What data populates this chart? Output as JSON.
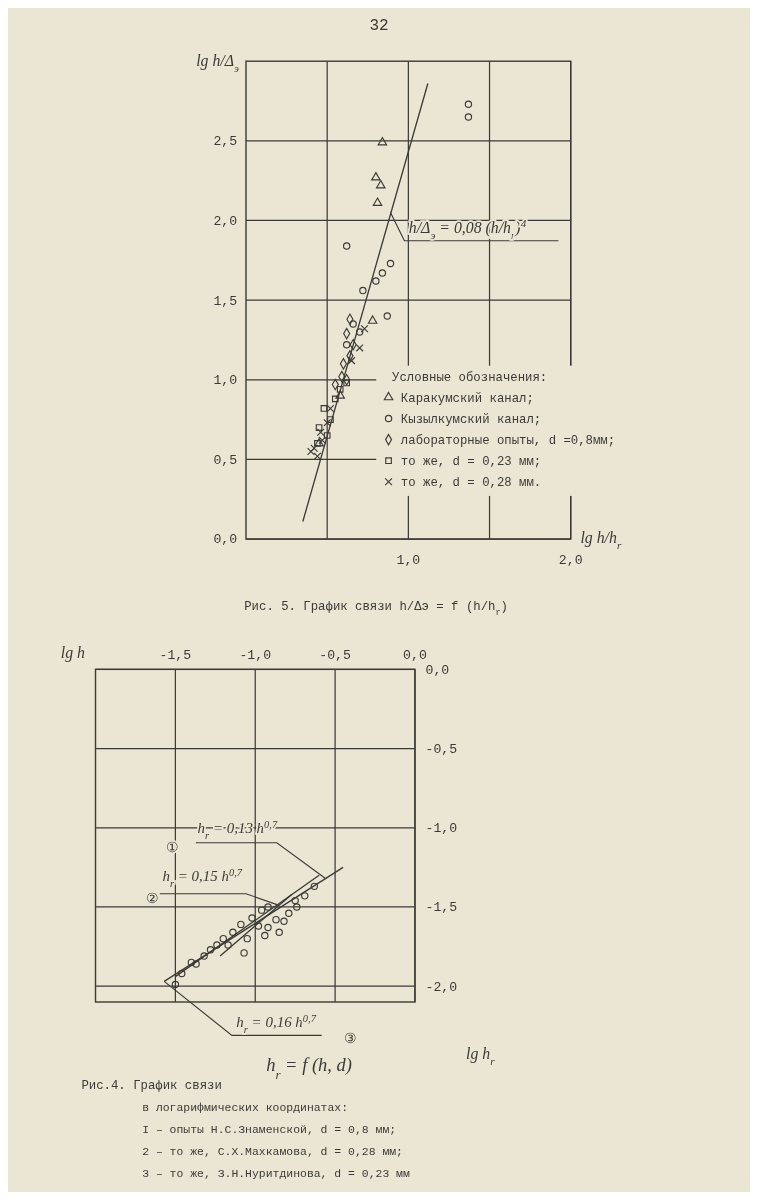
{
  "chart_data": [
    {
      "type": "scatter",
      "title": "Рис.4. График связи",
      "subtitle": "в логарифмических координатах:",
      "xlabel": "lg h",
      "ylabel": "lg h$_{r}$",
      "xlim": [
        -2.0,
        0.0
      ],
      "ylim": [
        -2.1,
        0.0
      ],
      "xticks": [
        {
          "value": -1.5,
          "label": "-1,5"
        },
        {
          "value": -1.0,
          "label": "-1,0"
        },
        {
          "value": -0.5,
          "label": "-0,5"
        },
        {
          "value": 0.0,
          "label": "0,0"
        }
      ],
      "yticks": [
        {
          "value": 0.0,
          "label": "0,0"
        },
        {
          "value": -0.5,
          "label": "-0,5"
        },
        {
          "value": -1.0,
          "label": "-1,0"
        },
        {
          "value": -1.5,
          "label": "-1,5"
        },
        {
          "value": -2.0,
          "label": "-2,0"
        }
      ],
      "grid": true,
      "series": [
        {
          "marker": "circle",
          "color": "#3b3a36",
          "x": [
            -0.63,
            -0.69,
            -0.74,
            -0.79,
            -0.82,
            -0.87,
            -0.92,
            -0.94,
            -1.07,
            -0.85,
            -0.92,
            -0.96,
            -1.02,
            -1.09,
            -1.14,
            -1.2,
            -1.24,
            -1.28,
            -1.32,
            -1.37,
            -1.46,
            -1.5,
            -0.75,
            -0.98,
            -1.05,
            -1.17,
            -1.4
          ],
          "values": [
            -1.37,
            -1.43,
            -1.5,
            -1.54,
            -1.59,
            -1.58,
            -1.63,
            -1.68,
            -1.79,
            -1.66,
            -1.5,
            -1.52,
            -1.57,
            -1.61,
            -1.66,
            -1.7,
            -1.74,
            -1.77,
            -1.81,
            -1.86,
            -1.92,
            -1.99,
            -1.46,
            -1.62,
            -1.7,
            -1.74,
            -1.85
          ]
        },
        {
          "type": "line",
          "color": "#3b3a36",
          "x": [
            -1.57,
            -0.45
          ],
          "values": [
            -1.97,
            -1.25
          ]
        },
        {
          "type": "line",
          "color": "#3b3a36",
          "x": [
            -1.22,
            -0.77
          ],
          "values": [
            -1.81,
            -1.42
          ]
        },
        {
          "type": "line",
          "color": "#3b3a36",
          "x": [
            -1.5,
            -0.6
          ],
          "values": [
            -1.94,
            -1.3
          ]
        }
      ],
      "annotations": [
        {
          "text": "h$_{r}$ = 0,13 h$^{0,7}$",
          "x": -0.56,
          "y": -1.32
        },
        "①",
        {
          "text": "h$_{r}$ = 0,15 h$^{0,7}$",
          "x": -0.85,
          "y": -1.49
        },
        "②",
        {
          "text": "h$_{r}$ = 0,16 h$^{0,7}$",
          "x": -1.57,
          "y": -1.97
        },
        "③",
        "h$_{r}$ = f (h, d)",
        "I – опыты Н.С.Знаменской, d = 0,8 мм;",
        "2 – то же, С.Х.Махкамова, d = 0,28 мм;",
        "3 – то же, З.Н.Нуритдинова, d = 0,23 мм"
      ]
    },
    {
      "type": "scatter",
      "title": "Рис. 5. График связи  h/Δэ = f (h/h$_{r}$)",
      "xlabel": "lg h/h$_{r}$",
      "ylabel": "lg h/Δ$_{э}$",
      "xlim": [
        0.0,
        2.0
      ],
      "ylim": [
        0.0,
        3.0
      ],
      "xticks": [
        {
          "value": 0.5,
          "label": null
        },
        {
          "value": 1.0,
          "label": "1,0"
        },
        {
          "value": 1.5,
          "label": null
        },
        {
          "value": 2.0,
          "label": "2,0"
        }
      ],
      "yticks": [
        {
          "value": 0.0,
          "label": "0,0"
        },
        {
          "value": 0.5,
          "label": "0,5"
        },
        {
          "value": 1.0,
          "label": "1,0"
        },
        {
          "value": 1.5,
          "label": "1,5"
        },
        {
          "value": 2.0,
          "label": "2,0"
        },
        {
          "value": 2.5,
          "label": "2,5"
        }
      ],
      "grid": true,
      "legend": "bottom right",
      "legend_title": "Условные обозначения:",
      "series": [
        {
          "name": "Каракумский канал;",
          "marker": "triangle",
          "color": "#3b3a36",
          "x": [
            0.84,
            0.8,
            0.83,
            0.81,
            0.78,
            0.58,
            0.45
          ],
          "values": [
            2.49,
            2.27,
            2.22,
            2.11,
            1.37,
            0.9,
            0.6
          ]
        },
        {
          "name": "Кызылкумский канал;",
          "marker": "circle",
          "color": "#3b3a36",
          "x": [
            1.37,
            1.37,
            0.62,
            0.89,
            0.84,
            0.8,
            0.72,
            0.87,
            0.66,
            0.7,
            0.62
          ],
          "values": [
            2.73,
            2.65,
            1.84,
            1.73,
            1.67,
            1.62,
            1.56,
            1.4,
            1.35,
            1.3,
            1.22
          ]
        },
        {
          "name": "лабораторные опыты, d =0,8мм;",
          "marker": "diamond",
          "color": "#3b3a36",
          "x": [
            0.64,
            0.62,
            0.66,
            0.64,
            0.6,
            0.59,
            0.62,
            0.55
          ],
          "values": [
            1.38,
            1.29,
            1.22,
            1.15,
            1.1,
            1.02,
            1.0,
            0.97
          ]
        },
        {
          "name": "то же, d = 0,23 мм;",
          "marker": "square",
          "color": "#3b3a36",
          "x": [
            0.62,
            0.58,
            0.55,
            0.48,
            0.52,
            0.45,
            0.5,
            0.44
          ],
          "values": [
            0.98,
            0.94,
            0.88,
            0.82,
            0.75,
            0.7,
            0.65,
            0.6
          ]
        },
        {
          "name": "то же, d = 0,28 мм.",
          "marker": "cross",
          "color": "#3b3a36",
          "x": [
            0.73,
            0.7,
            0.65,
            0.52,
            0.5,
            0.46,
            0.42,
            0.44,
            0.4,
            0.47
          ],
          "values": [
            1.32,
            1.2,
            1.12,
            0.82,
            0.73,
            0.67,
            0.57,
            0.52,
            0.55,
            0.62
          ]
        },
        {
          "type": "line",
          "color": "#3b3a36",
          "x": [
            0.35,
            1.12
          ],
          "values": [
            0.11,
            2.86
          ]
        }
      ],
      "annotations": [
        {
          "text": "h/Δ$_{э}$ = 0,08 (h/h$_{r}$)$^{4}$",
          "x": 0.89,
          "y": 2.05
        },
        "32"
      ]
    }
  ]
}
